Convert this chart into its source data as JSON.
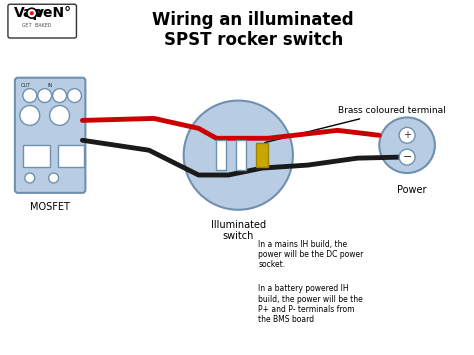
{
  "title_line1": "Wiring an illuminated",
  "title_line2": "SPST rocker switch",
  "bg_color": "#ffffff",
  "label_mosfet": "MOSFET",
  "label_switch": "Illuminated\nswitch",
  "label_power": "Power",
  "label_brass": "Brass coloured terminal",
  "note1": "In a mains IH build, the\npower will be the DC power\nsocket.",
  "note2": "In a battery powered IH\nbuild, the power will be the\nP+ and P- terminals from\nthe BMS board",
  "mosfet_color": "#b8cce4",
  "switch_color": "#b8cce4",
  "power_color": "#b8cce4",
  "wire_red": "#cc0000",
  "wire_black": "#1a1a1a",
  "brass_color": "#c8a800",
  "logo_text": "Vap○veN°",
  "logo_sub": "GET BAKED"
}
